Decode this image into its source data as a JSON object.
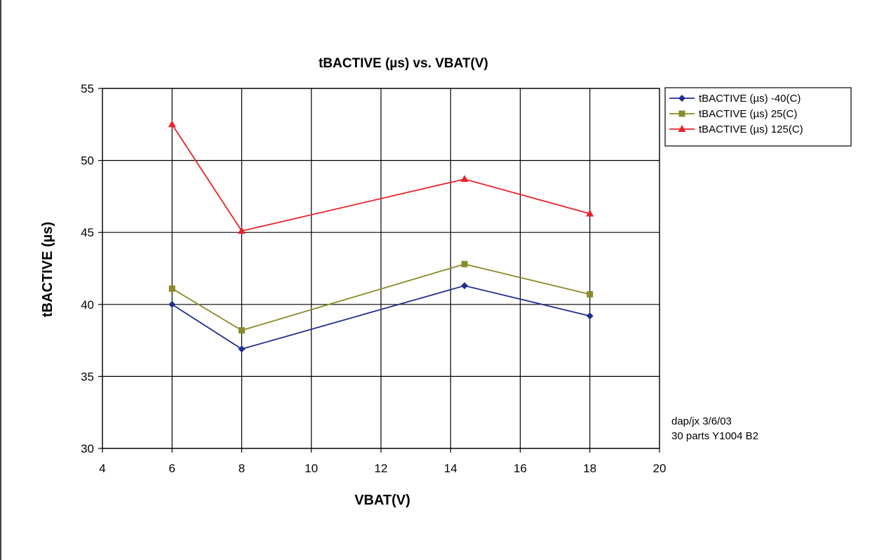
{
  "chart_data": {
    "type": "line",
    "title": "tBACTIVE (µs) vs. VBAT(V)",
    "xlabel": "VBAT(V)",
    "ylabel": "tBACTIVE (µs)",
    "xlim": [
      4,
      20
    ],
    "ylim": [
      30,
      55
    ],
    "x_ticks": [
      4,
      6,
      8,
      10,
      12,
      14,
      16,
      18,
      20
    ],
    "y_ticks": [
      30,
      35,
      40,
      45,
      50,
      55
    ],
    "grid": true,
    "legend_position": "top-right",
    "x": [
      6,
      8,
      14.4,
      18
    ],
    "series": [
      {
        "name": "tBACTIVE (µs) -40(C)",
        "marker": "diamond",
        "color": "#1f2f8f",
        "values": [
          40.0,
          36.9,
          41.3,
          39.2
        ]
      },
      {
        "name": "tBACTIVE (µs) 25(C)",
        "marker": "square",
        "color": "#8a8a2a",
        "values": [
          41.1,
          38.2,
          42.8,
          40.7
        ]
      },
      {
        "name": "tBACTIVE (µs) 125(C)",
        "marker": "triangle",
        "color": "#e8222a",
        "values": [
          52.5,
          45.1,
          48.7,
          46.3
        ]
      }
    ],
    "annotations": [
      "dap/jx 3/6/03",
      "30 parts Y1004 B2"
    ]
  }
}
